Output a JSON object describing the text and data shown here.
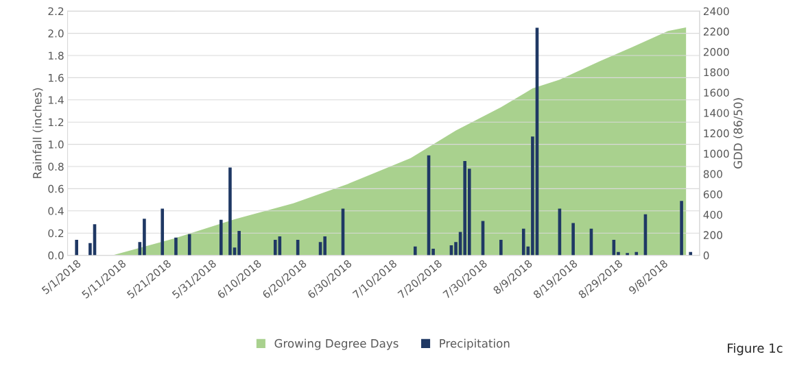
{
  "chart_data": {
    "type": "bar",
    "ylabel": "Rainfall (inches)",
    "y2label": "GDD (86/50)",
    "series": [
      {
        "name": "Growing Degree Days",
        "type": "area",
        "axis": "y2",
        "color": "#a9d18e",
        "x": [
          "2018-05-09",
          "2018-05-23",
          "2018-06-05",
          "2018-06-18",
          "2018-06-30",
          "2018-07-14",
          "2018-07-24",
          "2018-08-03",
          "2018-08-10",
          "2018-08-16",
          "2018-08-25",
          "2018-09-01",
          "2018-09-09",
          "2018-09-13"
        ],
        "values": [
          0,
          170,
          355,
          510,
          700,
          955,
          1227,
          1455,
          1640,
          1727,
          1909,
          2045,
          2204,
          2239
        ]
      },
      {
        "name": "Precipitation",
        "color": "#1f3864",
        "x": [
          "2018-05-01",
          "2018-05-04",
          "2018-05-05",
          "2018-05-15",
          "2018-05-16",
          "2018-05-20",
          "2018-05-23",
          "2018-05-26",
          "2018-06-02",
          "2018-06-04",
          "2018-06-05",
          "2018-06-06",
          "2018-06-14",
          "2018-06-15",
          "2018-06-19",
          "2018-06-24",
          "2018-06-25",
          "2018-06-29",
          "2018-07-15",
          "2018-07-18",
          "2018-07-19",
          "2018-07-23",
          "2018-07-24",
          "2018-07-25",
          "2018-07-26",
          "2018-07-27",
          "2018-07-30",
          "2018-08-03",
          "2018-08-08",
          "2018-08-09",
          "2018-08-10",
          "2018-08-11",
          "2018-08-16",
          "2018-08-19",
          "2018-08-23",
          "2018-08-28",
          "2018-08-29",
          "2018-08-31",
          "2018-09-02",
          "2018-09-04",
          "2018-09-12",
          "2018-09-14"
        ],
        "values": [
          0.14,
          0.11,
          0.28,
          0.12,
          0.33,
          0.42,
          0.16,
          0.19,
          0.32,
          0.79,
          0.07,
          0.22,
          0.14,
          0.17,
          0.14,
          0.12,
          0.17,
          0.42,
          0.08,
          0.9,
          0.06,
          0.09,
          0.12,
          0.21,
          0.85,
          0.78,
          0.31,
          0.14,
          0.24,
          0.08,
          1.07,
          2.05,
          0.42,
          0.29,
          0.24,
          0.14,
          0.03,
          0.02,
          0.03,
          0.37,
          0.49,
          0.03
        ]
      }
    ],
    "xlim": [
      "2018-04-29",
      "2018-09-16"
    ],
    "xticks": [
      {
        "value": "2018-05-01",
        "label": "5/1/2018"
      },
      {
        "value": "2018-05-11",
        "label": "5/11/2018"
      },
      {
        "value": "2018-05-21",
        "label": "5/21/2018"
      },
      {
        "value": "2018-05-31",
        "label": "5/31/2018"
      },
      {
        "value": "2018-06-10",
        "label": "6/10/2018"
      },
      {
        "value": "2018-06-20",
        "label": "6/20/2018"
      },
      {
        "value": "2018-06-30",
        "label": "6/30/2018"
      },
      {
        "value": "2018-07-10",
        "label": "7/10/2018"
      },
      {
        "value": "2018-07-20",
        "label": "7/20/2018"
      },
      {
        "value": "2018-07-30",
        "label": "7/30/2018"
      },
      {
        "value": "2018-08-09",
        "label": "8/9/2018"
      },
      {
        "value": "2018-08-19",
        "label": "8/19/2018"
      },
      {
        "value": "2018-08-29",
        "label": "8/29/2018"
      },
      {
        "value": "2018-09-08",
        "label": "9/8/2018"
      }
    ],
    "ylim": [
      0,
      2.2
    ],
    "yticks": [
      {
        "value": 0,
        "label": "0.0"
      },
      0.2,
      0.4,
      0.6,
      0.8,
      {
        "value": 1,
        "label": "1.0"
      },
      1.2,
      1.4,
      1.6,
      1.8,
      {
        "value": 2,
        "label": "2.0"
      },
      2.2
    ],
    "y2lim": [
      0,
      2400
    ],
    "y2ticks": [
      0,
      200,
      400,
      600,
      800,
      1000,
      1200,
      1400,
      1600,
      1800,
      2000,
      2200,
      2400
    ],
    "grid": "y",
    "legend": "bottom",
    "annotations": [
      "Figure 1c"
    ]
  }
}
